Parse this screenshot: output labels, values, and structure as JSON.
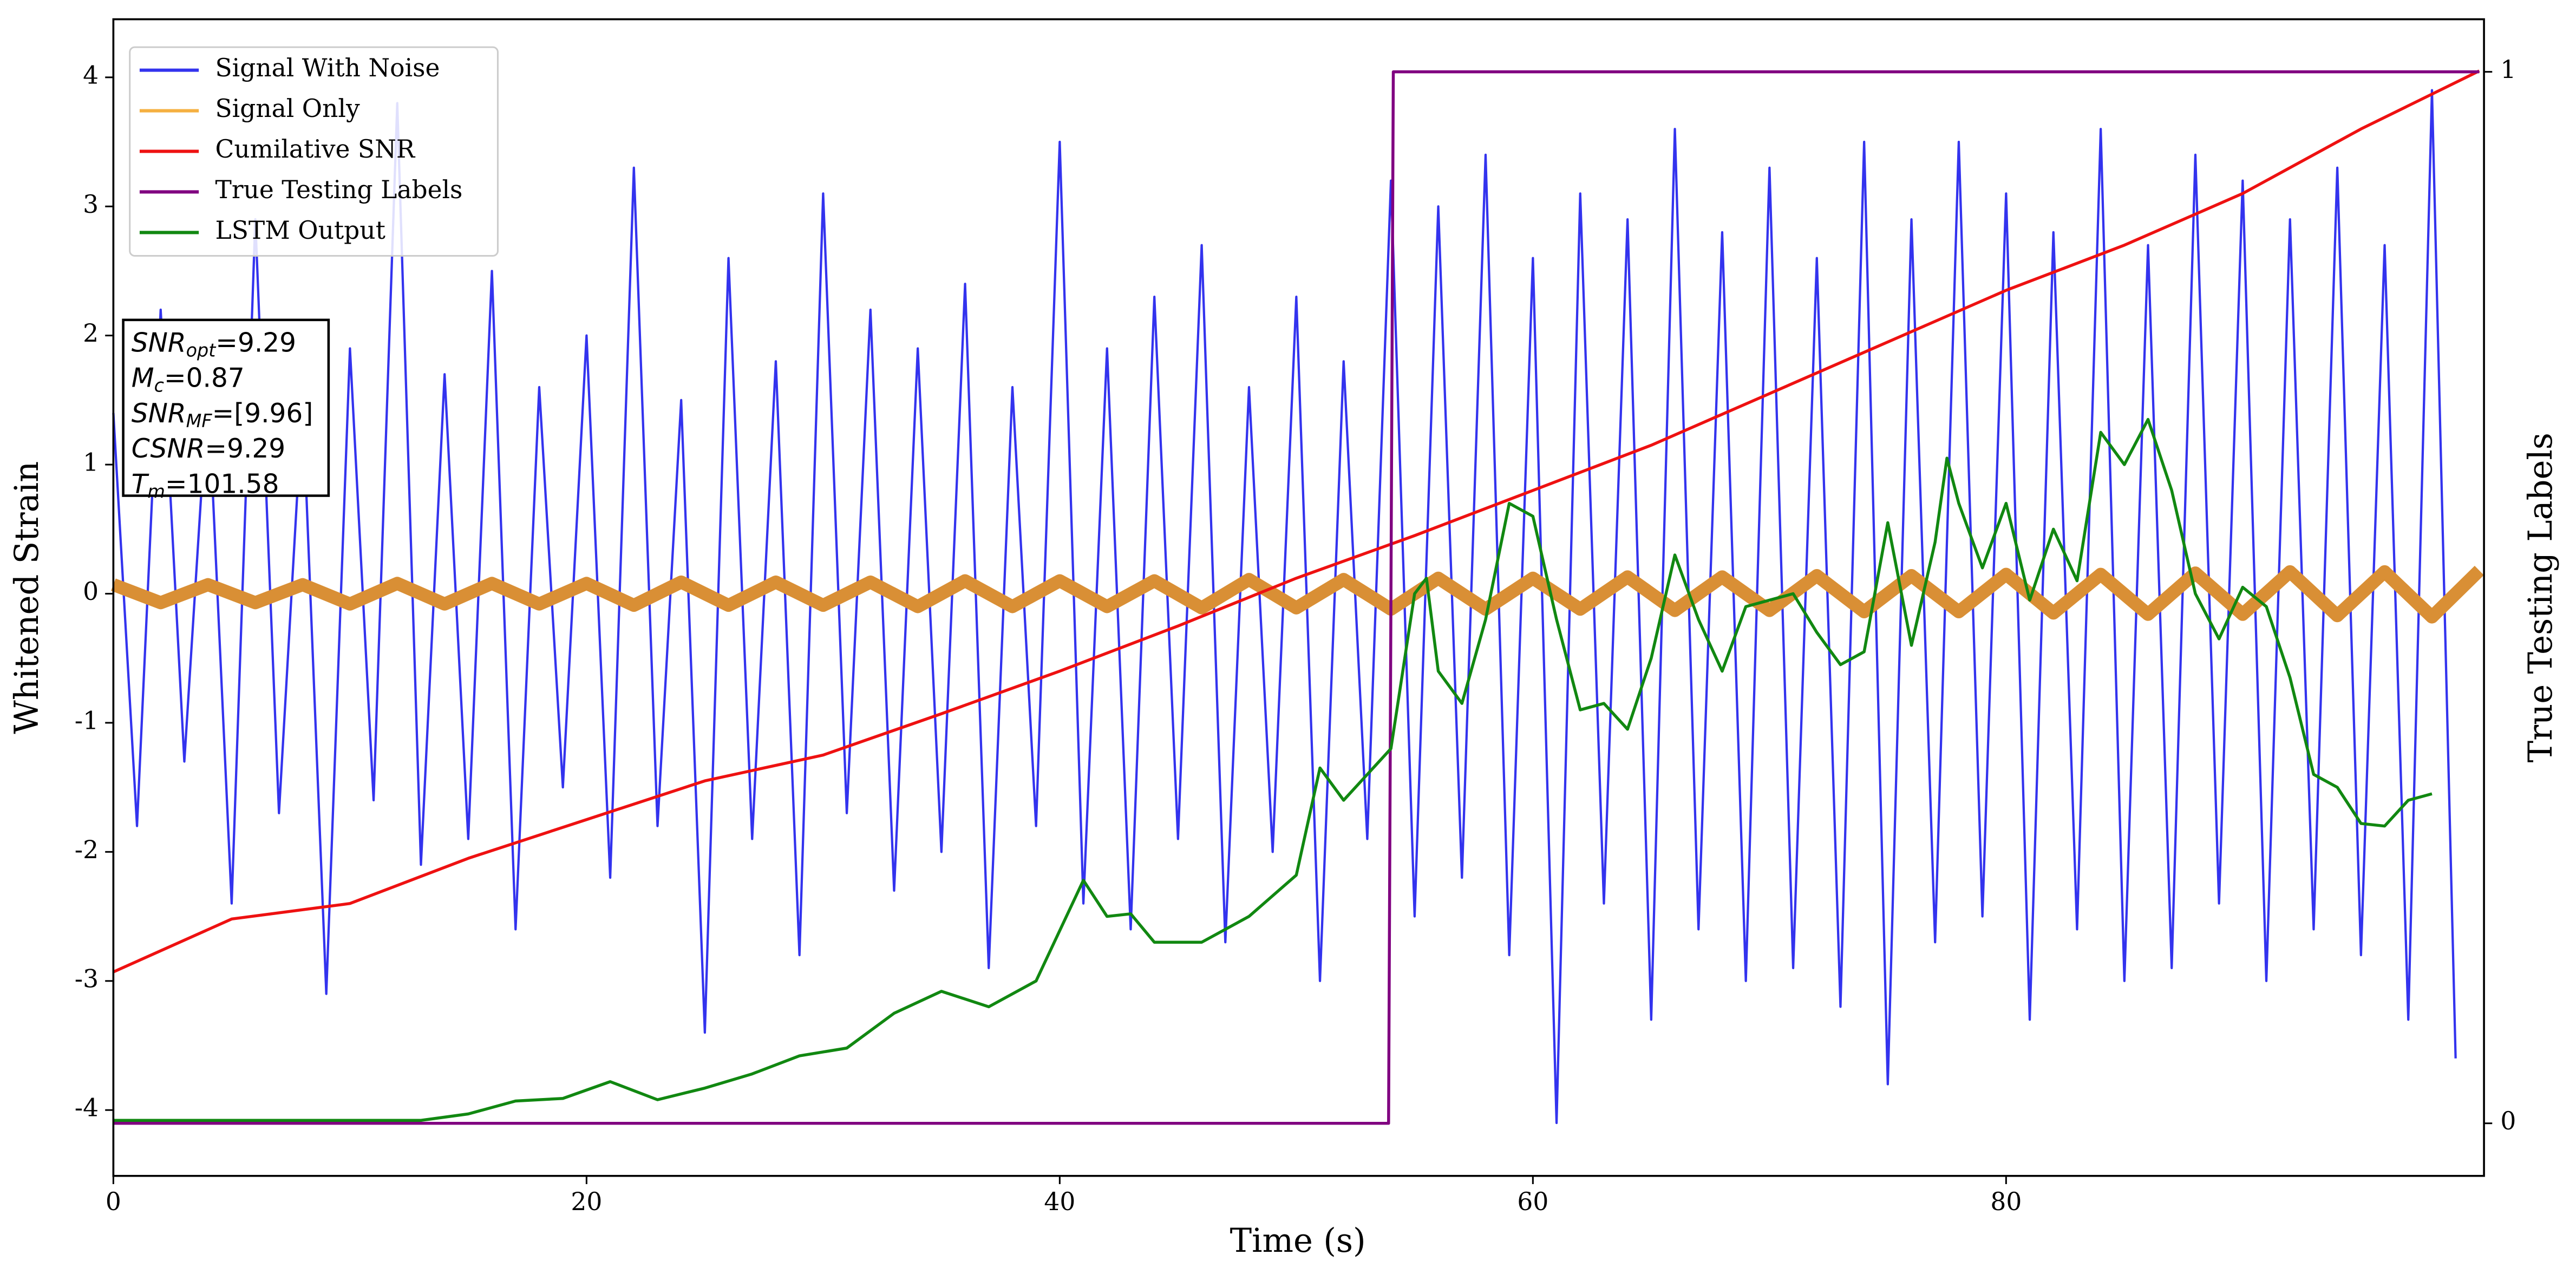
{
  "chart_data": {
    "type": "line",
    "xlabel": "Time (s)",
    "ylabel": "Whitened Strain",
    "y2label": "True Testing Labels",
    "xlim": [
      0,
      100.2
    ],
    "ylim": [
      -4.51,
      4.45
    ],
    "y2lim": [
      -0.05,
      1.05
    ],
    "xticks": [
      0,
      20,
      40,
      60,
      80
    ],
    "yticks": [
      -4,
      -3,
      -2,
      -1,
      0,
      1,
      2,
      3,
      4
    ],
    "y2ticks": [
      0,
      1
    ],
    "legend_position": "upper left",
    "annotation": [
      {
        "main": "SNR",
        "sub": "opt",
        "rest": "=9.29"
      },
      {
        "main": "M",
        "sub": "c",
        "rest": "=0.87"
      },
      {
        "main": "SNR",
        "sub": "MF",
        "rest": "=[9.96]"
      },
      {
        "main": "CSNR",
        "rest": "=9.29"
      },
      {
        "main": "T",
        "sub": "m",
        "rest": "=101.58"
      }
    ],
    "series": [
      {
        "name": "Signal With Noise",
        "color": "#3333ee",
        "x": [
          0,
          1,
          2,
          3,
          4,
          5,
          6,
          7,
          8,
          9,
          10,
          11,
          12,
          13,
          14,
          15,
          16,
          17,
          18,
          19,
          20,
          21,
          22,
          23,
          24,
          25,
          26,
          27,
          28,
          29,
          30,
          31,
          32,
          33,
          34,
          35,
          36,
          37,
          38,
          39,
          40,
          41,
          42,
          43,
          44,
          45,
          46,
          47,
          48,
          49,
          50,
          51,
          52,
          53,
          54,
          55,
          56,
          57,
          58,
          59,
          60,
          61,
          62,
          63,
          64,
          65,
          66,
          67,
          68,
          69,
          70,
          71,
          72,
          73,
          74,
          75,
          76,
          77,
          78,
          79,
          80,
          81,
          82,
          83,
          84,
          85,
          86,
          87,
          88,
          89,
          90,
          91,
          92,
          93,
          94,
          95,
          96,
          97,
          98,
          99
        ],
        "values": [
          1.4,
          -1.8,
          2.2,
          -1.3,
          1.6,
          -2.4,
          2.9,
          -1.7,
          1.5,
          -3.1,
          1.9,
          -1.6,
          3.8,
          -2.1,
          1.7,
          -1.9,
          2.5,
          -2.6,
          1.6,
          -1.5,
          2.0,
          -2.2,
          3.3,
          -1.8,
          1.5,
          -3.4,
          2.6,
          -1.9,
          1.8,
          -2.8,
          3.1,
          -1.7,
          2.2,
          -2.3,
          1.9,
          -2.0,
          2.4,
          -2.9,
          1.6,
          -1.8,
          3.5,
          -2.4,
          1.9,
          -2.6,
          2.3,
          -1.9,
          2.7,
          -2.7,
          1.6,
          -2.0,
          2.3,
          -3.0,
          1.8,
          -1.9,
          3.2,
          -2.5,
          3.0,
          -2.2,
          3.4,
          -2.8,
          2.6,
          -4.1,
          3.1,
          -2.4,
          2.9,
          -3.3,
          3.6,
          -2.6,
          2.8,
          -3.0,
          3.3,
          -2.9,
          2.6,
          -3.2,
          3.5,
          -3.8,
          2.9,
          -2.7,
          3.5,
          -2.5,
          3.1,
          -3.3,
          2.8,
          -2.6,
          3.6,
          -3.0,
          2.7,
          -2.9,
          3.4,
          -2.4,
          3.2,
          -3.0,
          2.9,
          -2.6,
          3.3,
          -2.8,
          2.7,
          -3.3,
          3.9,
          -3.6
        ]
      },
      {
        "name": "Signal Only",
        "color": "#f5b041",
        "draw_color": "#d98f35",
        "x": [
          0,
          2,
          4,
          6,
          8,
          10,
          12,
          14,
          16,
          18,
          20,
          22,
          24,
          26,
          28,
          30,
          32,
          34,
          36,
          38,
          40,
          42,
          44,
          46,
          48,
          50,
          52,
          54,
          56,
          58,
          60,
          62,
          64,
          66,
          68,
          70,
          72,
          74,
          76,
          78,
          80,
          82,
          84,
          86,
          88,
          90,
          92,
          94,
          96,
          98,
          100
        ],
        "values": [
          0.07,
          -0.07,
          0.07,
          -0.07,
          0.07,
          -0.08,
          0.08,
          -0.08,
          0.08,
          -0.08,
          0.08,
          -0.09,
          0.09,
          -0.09,
          0.09,
          -0.09,
          0.09,
          -0.1,
          0.1,
          -0.1,
          0.1,
          -0.1,
          0.1,
          -0.11,
          0.11,
          -0.11,
          0.11,
          -0.12,
          0.12,
          -0.12,
          0.12,
          -0.12,
          0.13,
          -0.13,
          0.13,
          -0.13,
          0.14,
          -0.14,
          0.14,
          -0.14,
          0.15,
          -0.15,
          0.15,
          -0.16,
          0.16,
          -0.16,
          0.17,
          -0.17,
          0.17,
          -0.18,
          0.18
        ]
      },
      {
        "name": "Cumilative SNR",
        "color": "#ee1111",
        "x": [
          0,
          5,
          10,
          15,
          20,
          25,
          30,
          35,
          40,
          45,
          50,
          55,
          60,
          65,
          70,
          75,
          80,
          85,
          90,
          95,
          100
        ],
        "values": [
          -2.93,
          -2.52,
          -2.4,
          -2.05,
          -1.75,
          -1.45,
          -1.25,
          -0.93,
          -0.6,
          -0.25,
          0.12,
          0.45,
          0.8,
          1.15,
          1.55,
          1.95,
          2.35,
          2.7,
          3.1,
          3.6,
          4.05
        ]
      },
      {
        "name": "True Testing Labels",
        "color": "#800080",
        "axis": "y2",
        "x": [
          0,
          53.9,
          54.1,
          100
        ],
        "values": [
          0,
          0,
          1,
          1
        ]
      },
      {
        "name": "LSTM Output",
        "color": "#118811",
        "x": [
          0,
          13,
          15,
          17,
          19,
          21,
          23,
          25,
          27,
          29,
          31,
          33,
          35,
          37,
          39,
          41,
          42,
          43,
          44,
          46,
          48,
          50,
          51,
          52,
          53,
          54,
          55,
          55.5,
          56,
          57,
          58,
          59,
          60,
          61,
          62,
          63,
          64,
          65,
          66,
          67,
          68,
          69,
          70,
          71,
          72,
          73,
          74,
          75,
          76,
          77,
          77.5,
          78,
          79,
          80,
          81,
          82,
          83,
          84,
          85,
          86,
          87,
          88,
          89,
          90,
          91,
          92,
          93,
          94,
          95,
          96,
          97,
          98
        ],
        "values": [
          -4.08,
          -4.08,
          -4.03,
          -3.93,
          -3.91,
          -3.78,
          -3.92,
          -3.83,
          -3.72,
          -3.58,
          -3.52,
          -3.25,
          -3.08,
          -3.2,
          -3.0,
          -2.22,
          -2.5,
          -2.48,
          -2.7,
          -2.7,
          -2.5,
          -2.18,
          -1.35,
          -1.6,
          -1.4,
          -1.2,
          0.0,
          0.12,
          -0.6,
          -0.85,
          -0.2,
          0.7,
          0.6,
          -0.2,
          -0.9,
          -0.85,
          -1.05,
          -0.5,
          0.3,
          -0.2,
          -0.6,
          -0.1,
          -0.05,
          0.0,
          -0.3,
          -0.55,
          -0.45,
          0.55,
          -0.4,
          0.4,
          1.05,
          0.7,
          0.2,
          0.7,
          -0.05,
          0.5,
          0.1,
          1.25,
          1.0,
          1.35,
          0.8,
          0.0,
          -0.35,
          0.05,
          -0.1,
          -0.65,
          -1.4,
          -1.5,
          -1.78,
          -1.8,
          -1.6,
          -1.55
        ]
      }
    ]
  }
}
